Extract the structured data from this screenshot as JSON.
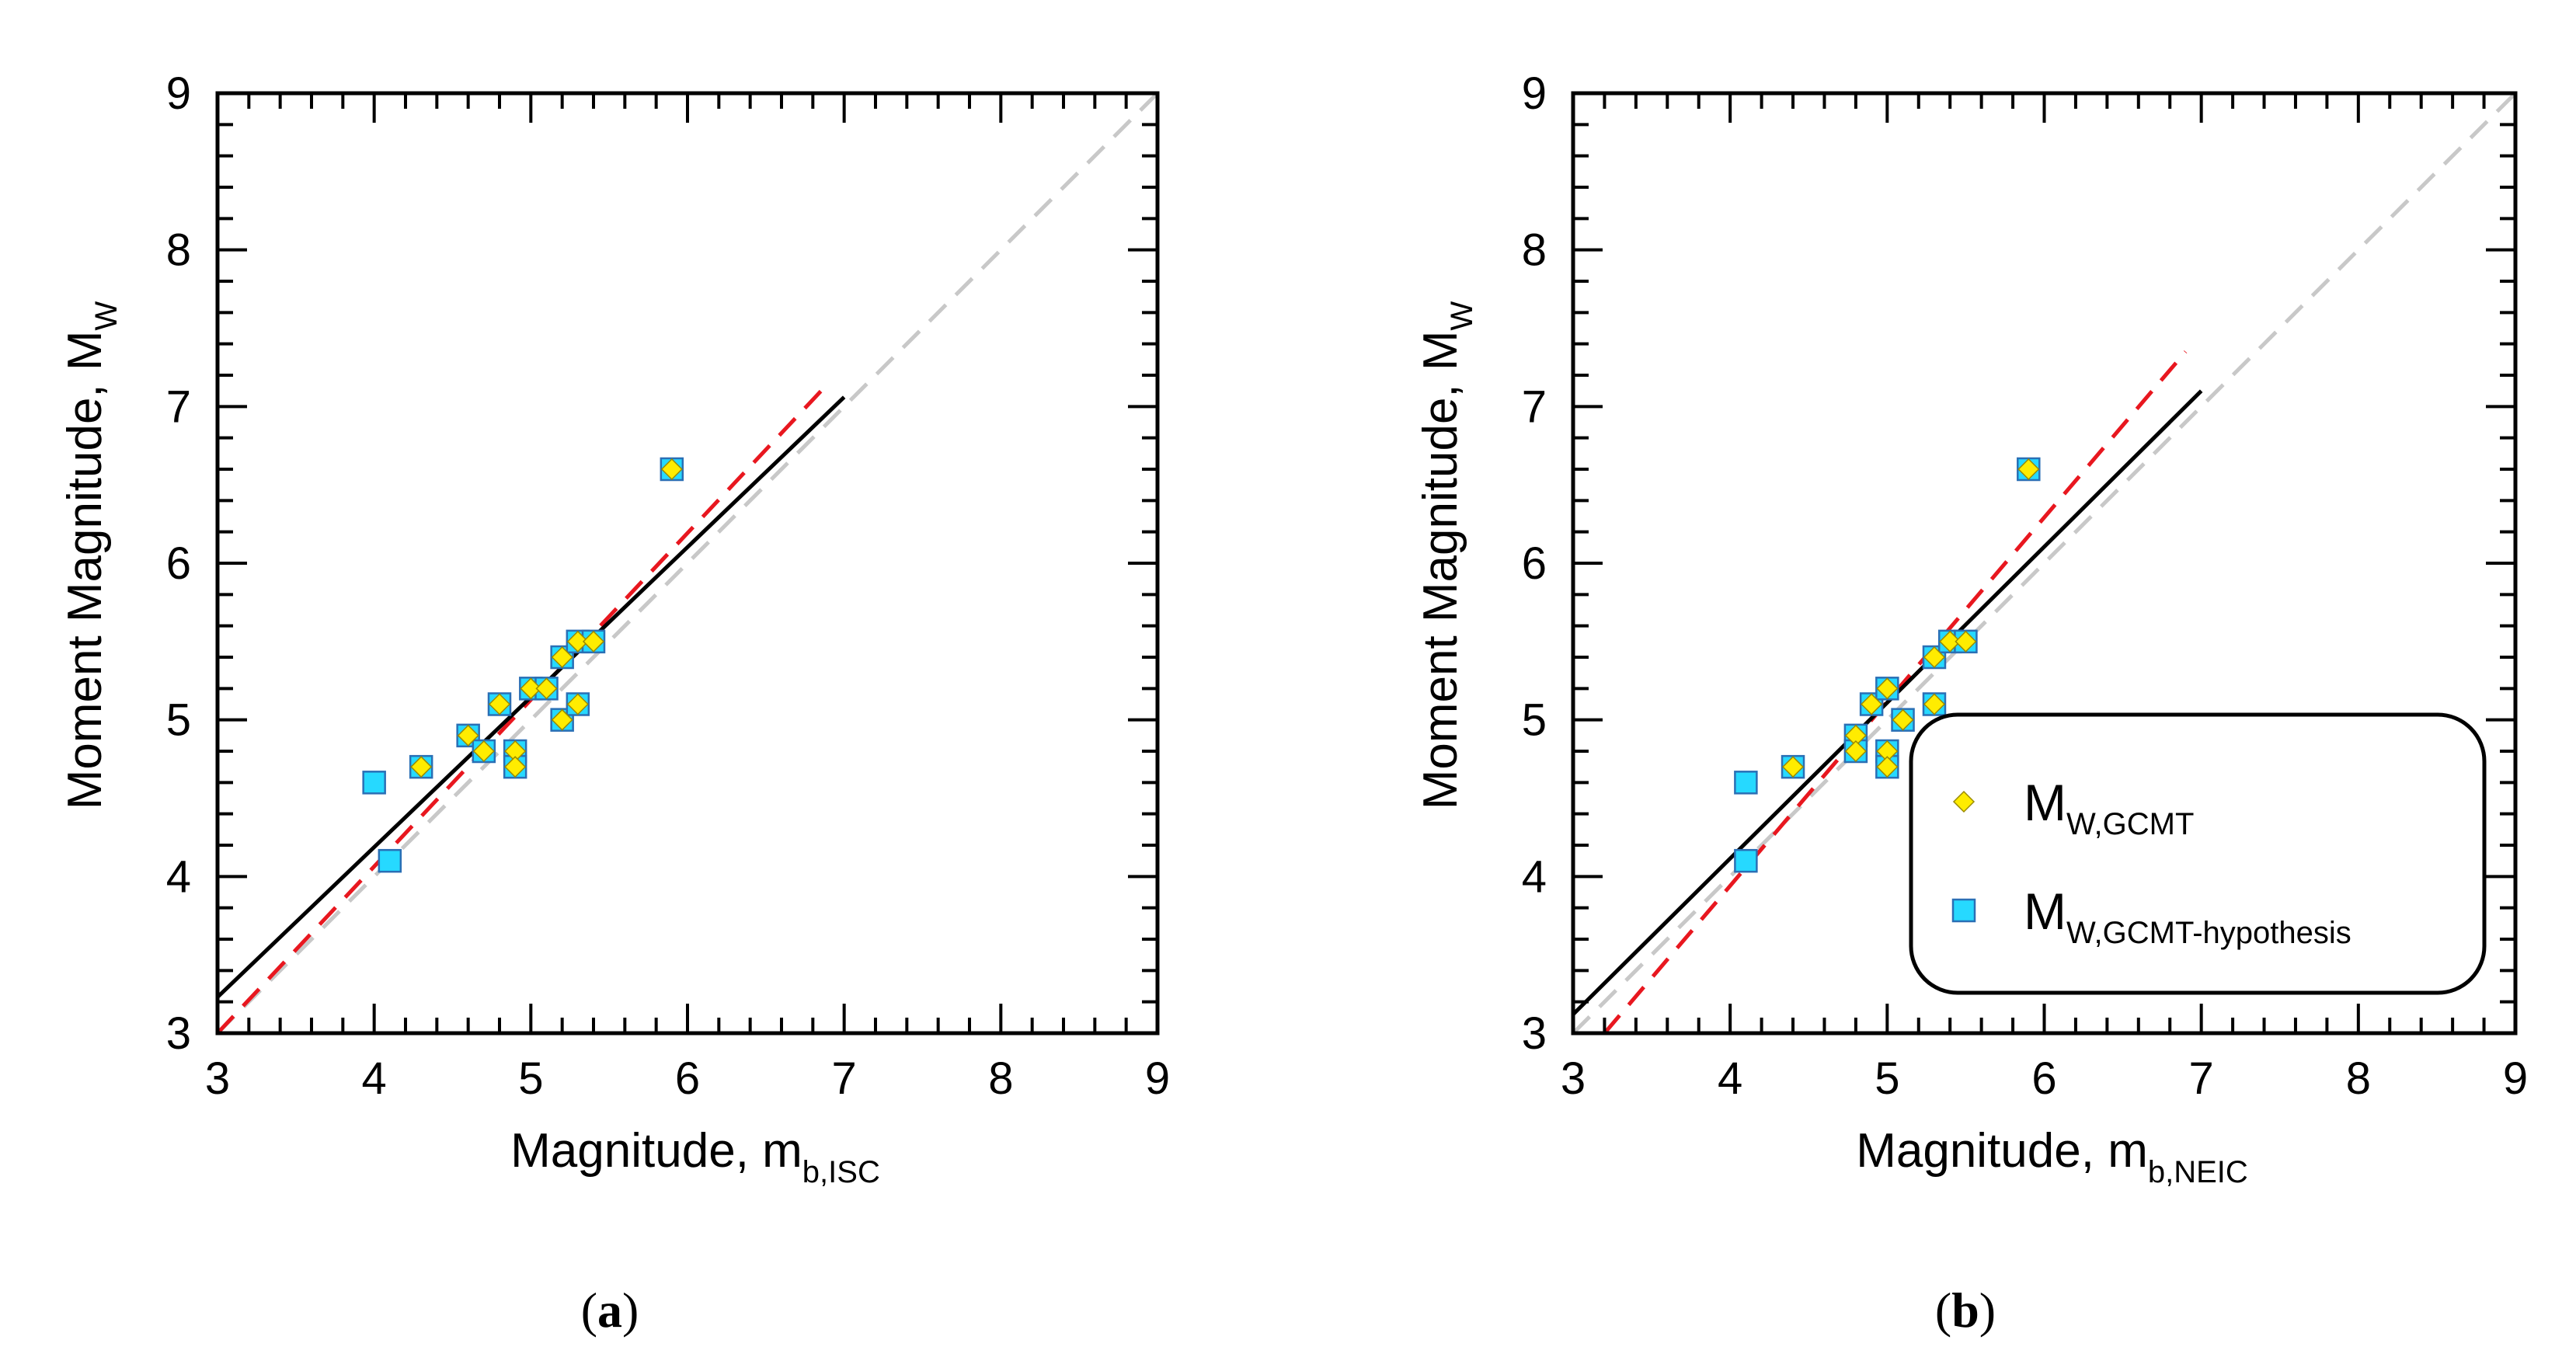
{
  "chart_data": [
    {
      "type": "scatter",
      "panel_label_open": "(",
      "panel_label": "a",
      "panel_label_close": ")",
      "xlabel": "Magnitude, m",
      "xlabel_sub": "b,ISC",
      "ylabel": "Moment Magnitude, M",
      "ylabel_sub": "W",
      "xlim": [
        3,
        9
      ],
      "ylim": [
        3,
        9
      ],
      "xticks": [
        "3",
        "4",
        "5",
        "6",
        "7",
        "8",
        "9"
      ],
      "yticks": [
        "3",
        "4",
        "5",
        "6",
        "7",
        "8",
        "9"
      ],
      "series": [
        {
          "name": "M W,GCMT",
          "marker": "diamond",
          "color": "#ffec00",
          "points": [
            [
              4.3,
              4.7
            ],
            [
              4.6,
              4.9
            ],
            [
              4.7,
              4.8
            ],
            [
              4.8,
              5.1
            ],
            [
              4.9,
              4.8
            ],
            [
              4.9,
              4.7
            ],
            [
              5.0,
              5.2
            ],
            [
              5.1,
              5.2
            ],
            [
              5.2,
              5.4
            ],
            [
              5.2,
              5.0
            ],
            [
              5.3,
              5.5
            ],
            [
              5.3,
              5.1
            ],
            [
              5.4,
              5.5
            ],
            [
              5.9,
              6.6
            ]
          ]
        },
        {
          "name": "M W,GCMT-hypothesis",
          "marker": "square",
          "color": "#26d9ff",
          "points": [
            [
              4.0,
              4.6
            ],
            [
              4.1,
              4.1
            ],
            [
              4.3,
              4.7
            ],
            [
              4.6,
              4.9
            ],
            [
              4.7,
              4.8
            ],
            [
              4.8,
              5.1
            ],
            [
              4.9,
              4.8
            ],
            [
              4.9,
              4.7
            ],
            [
              5.0,
              5.2
            ],
            [
              5.1,
              5.2
            ],
            [
              5.2,
              5.4
            ],
            [
              5.2,
              5.0
            ],
            [
              5.3,
              5.5
            ],
            [
              5.3,
              5.1
            ],
            [
              5.4,
              5.5
            ],
            [
              5.9,
              6.6
            ]
          ]
        }
      ],
      "lines": [
        {
          "name": "regression",
          "style": "solid",
          "color": "#000000",
          "x": [
            3,
            7
          ],
          "y": [
            3.23,
            7.06
          ]
        },
        {
          "name": "regression-gcmt",
          "style": "dashed",
          "color": "#e8171f",
          "x": [
            3,
            6.9
          ],
          "y": [
            3.0,
            7.15
          ]
        },
        {
          "name": "one-to-one",
          "style": "dashed",
          "color": "#c8c8c8",
          "x": [
            3,
            9
          ],
          "y": [
            3,
            9
          ]
        }
      ]
    },
    {
      "type": "scatter",
      "panel_label_open": "(",
      "panel_label": "b",
      "panel_label_close": ")",
      "xlabel": "Magnitude, m",
      "xlabel_sub": "b,NEIC",
      "ylabel": "Moment Magnitude, M",
      "ylabel_sub": "W",
      "xlim": [
        3,
        9
      ],
      "ylim": [
        3,
        9
      ],
      "xticks": [
        "3",
        "4",
        "5",
        "6",
        "7",
        "8",
        "9"
      ],
      "yticks": [
        "3",
        "4",
        "5",
        "6",
        "7",
        "8",
        "9"
      ],
      "legend": {
        "position": "bottom-right",
        "entries": [
          {
            "main": "M",
            "sub": "W,GCMT",
            "marker": "diamond"
          },
          {
            "main": "M",
            "sub": "W,GCMT-hypothesis",
            "marker": "square"
          }
        ]
      },
      "series": [
        {
          "name": "M W,GCMT",
          "marker": "diamond",
          "color": "#ffec00",
          "points": [
            [
              4.4,
              4.7
            ],
            [
              4.8,
              4.9
            ],
            [
              4.8,
              4.8
            ],
            [
              4.9,
              5.1
            ],
            [
              5.0,
              5.2
            ],
            [
              5.0,
              4.8
            ],
            [
              5.0,
              4.7
            ],
            [
              5.1,
              5.0
            ],
            [
              5.3,
              5.4
            ],
            [
              5.3,
              5.1
            ],
            [
              5.4,
              5.5
            ],
            [
              5.5,
              5.5
            ],
            [
              5.9,
              6.6
            ]
          ]
        },
        {
          "name": "M W,GCMT-hypothesis",
          "marker": "square",
          "color": "#26d9ff",
          "points": [
            [
              4.1,
              4.6
            ],
            [
              4.1,
              4.1
            ],
            [
              4.4,
              4.7
            ],
            [
              4.8,
              4.9
            ],
            [
              4.8,
              4.8
            ],
            [
              4.9,
              5.1
            ],
            [
              5.0,
              5.2
            ],
            [
              5.0,
              4.8
            ],
            [
              5.0,
              4.7
            ],
            [
              5.1,
              5.0
            ],
            [
              5.3,
              5.4
            ],
            [
              5.3,
              5.1
            ],
            [
              5.4,
              5.5
            ],
            [
              5.5,
              5.5
            ],
            [
              5.9,
              6.6
            ]
          ]
        }
      ],
      "lines": [
        {
          "name": "regression",
          "style": "solid",
          "color": "#000000",
          "x": [
            3,
            7
          ],
          "y": [
            3.12,
            7.1
          ]
        },
        {
          "name": "regression-gcmt",
          "style": "dashed",
          "color": "#e8171f",
          "x": [
            3.2,
            6.9
          ],
          "y": [
            3.0,
            7.35
          ]
        },
        {
          "name": "one-to-one",
          "style": "dashed",
          "color": "#c8c8c8",
          "x": [
            3,
            9
          ],
          "y": [
            3,
            9
          ]
        }
      ]
    }
  ]
}
